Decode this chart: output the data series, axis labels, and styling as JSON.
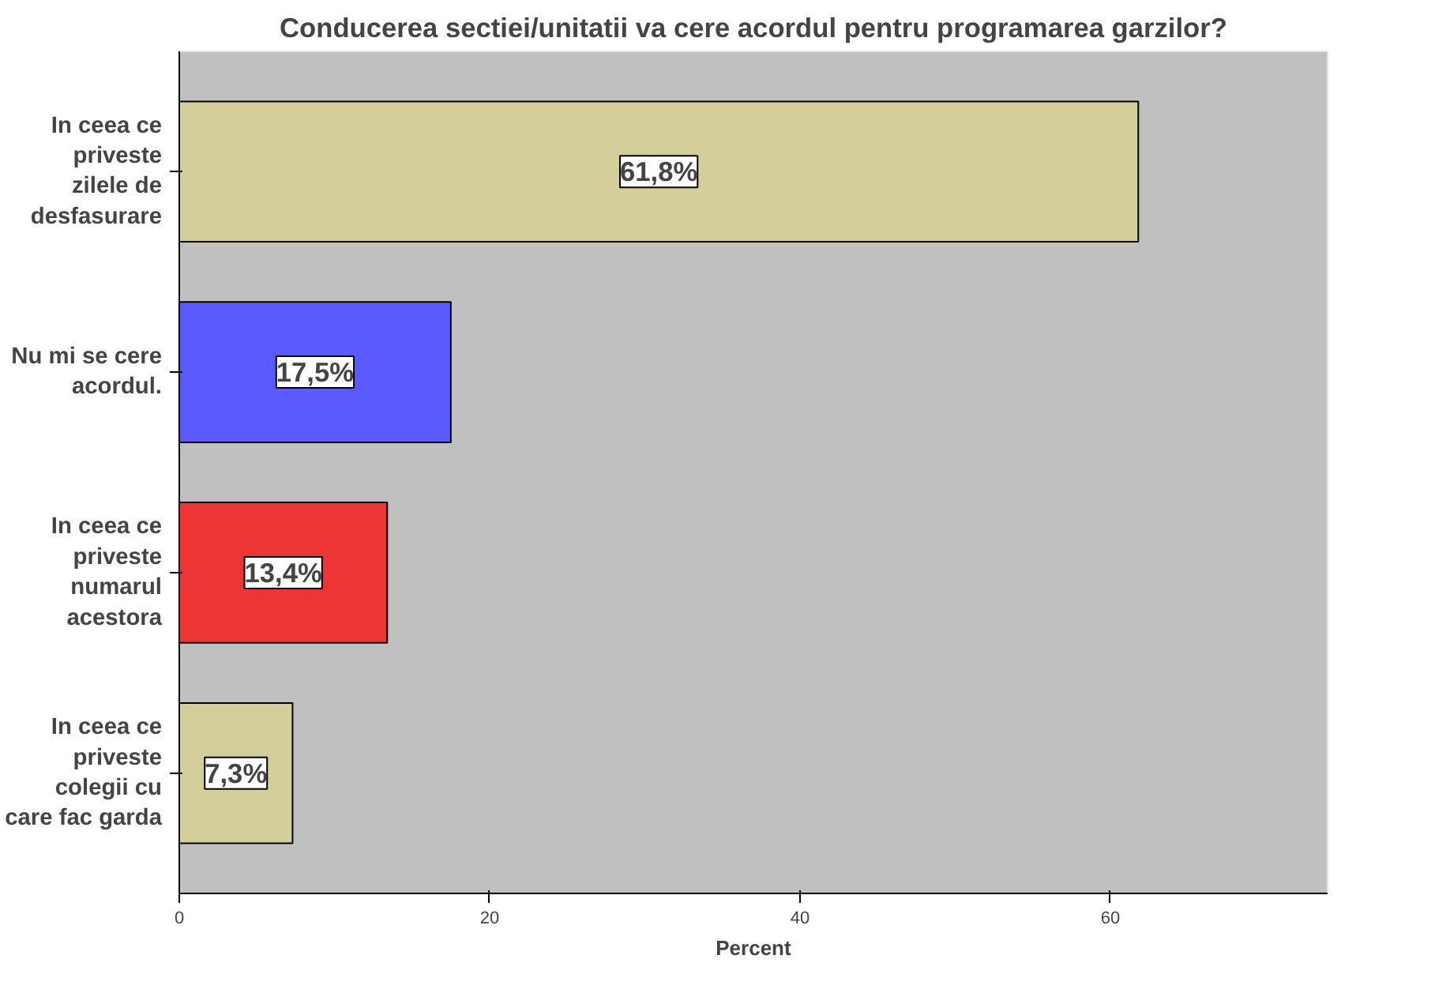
{
  "chart_data": {
    "type": "bar",
    "orientation": "horizontal",
    "title": "Conducerea sectiei/unitatii va cere acordul pentru programarea garzilor?",
    "xlabel": "Percent",
    "categories": [
      "In ceea ce priveste zilele de desfasurare",
      "Nu mi se cere acordul.",
      "In ceea ce priveste numarul acestora",
      "In ceea ce priveste colegii cu care fac garda"
    ],
    "values": [
      61.8,
      17.5,
      13.4,
      7.3
    ],
    "colors": [
      "#d4cf9a",
      "#5a5aff",
      "#ee3535",
      "#d4cf9a"
    ],
    "value_labels": [
      "61,8%",
      "17,5%",
      "13,4%",
      "7,3%"
    ],
    "xlim": [
      0,
      74
    ],
    "xticks": [
      0,
      20,
      40,
      60
    ],
    "grid": false
  }
}
